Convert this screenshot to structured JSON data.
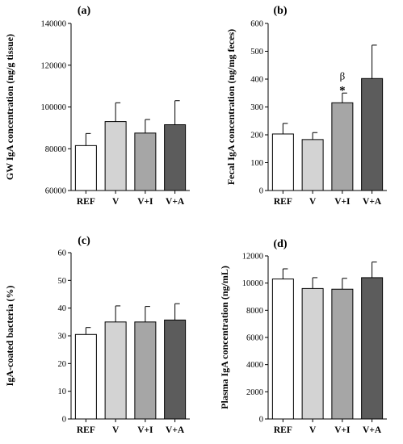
{
  "chart_data": [
    {
      "panel": "(a)",
      "type": "bar",
      "categories": [
        "REF",
        "V",
        "V+I",
        "V+A"
      ],
      "values": [
        81500,
        93000,
        87500,
        91500
      ],
      "errors": [
        5800,
        9000,
        6500,
        11500
      ],
      "ylabel": "GW IgA concentration (ng/g tissue)",
      "ylim": [
        60000,
        140000
      ],
      "yticks": [
        60000,
        80000,
        100000,
        120000,
        140000
      ],
      "annotations": []
    },
    {
      "panel": "(b)",
      "type": "bar",
      "categories": [
        "REF",
        "V",
        "V+I",
        "V+A"
      ],
      "values": [
        203,
        183,
        315,
        402
      ],
      "errors": [
        38,
        25,
        35,
        120
      ],
      "ylabel": "Fecal IgA concentration (ng/mg feces)",
      "ylim": [
        0,
        600
      ],
      "yticks": [
        0,
        100,
        200,
        300,
        400,
        500,
        600
      ],
      "annotations": [
        {
          "category": "V+I",
          "lines": [
            "β",
            "*"
          ]
        }
      ]
    },
    {
      "panel": "(c)",
      "type": "bar",
      "categories": [
        "REF",
        "V",
        "V+I",
        "V+A"
      ],
      "values": [
        30.5,
        35,
        35,
        35.7
      ],
      "errors": [
        2.5,
        5.8,
        5.6,
        5.9
      ],
      "ylabel": "IgA-coated bacteria (%)",
      "ylim": [
        0,
        60
      ],
      "yticks": [
        0,
        10,
        20,
        30,
        40,
        50,
        60
      ],
      "annotations": []
    },
    {
      "panel": "(d)",
      "type": "bar",
      "categories": [
        "REF",
        "V",
        "V+I",
        "V+A"
      ],
      "values": [
        10300,
        9600,
        9550,
        10400
      ],
      "errors": [
        750,
        800,
        800,
        1150
      ],
      "ylabel": "Plasma IgA concentration (ng/mL)",
      "ylim": [
        0,
        12000
      ],
      "yticks": [
        0,
        2000,
        4000,
        6000,
        8000,
        10000,
        12000
      ],
      "annotations": []
    }
  ],
  "colors": {
    "bars": [
      "#ffffff",
      "#d3d3d3",
      "#a6a6a6",
      "#5c5c5c"
    ],
    "stroke": "#000000"
  }
}
